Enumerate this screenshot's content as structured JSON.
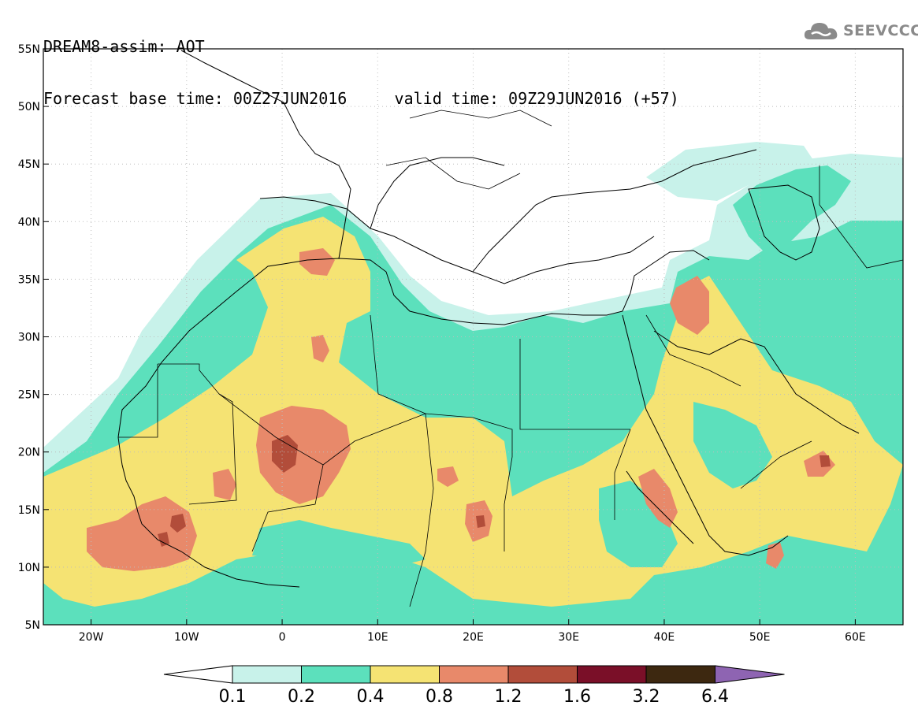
{
  "header": {
    "title": "DREAM8-assim: AOT",
    "base_time": "Forecast base time: 00Z27JUN2016",
    "valid_time": "valid time: 09Z29JUN2016 (+57)"
  },
  "logo": {
    "text": "SEEVCCC",
    "icon": "cloud-icon"
  },
  "map": {
    "lon_range": [
      -25,
      65
    ],
    "lat_range": [
      5,
      55
    ],
    "lat_labels": [
      "55N",
      "50N",
      "45N",
      "40N",
      "35N",
      "30N",
      "25N",
      "20N",
      "15N",
      "10N",
      "5N"
    ],
    "lon_labels": [
      "20W",
      "10W",
      "0",
      "10E",
      "20E",
      "30E",
      "40E",
      "50E",
      "60E"
    ],
    "grid": "dotted"
  },
  "colorbar": {
    "labels": [
      "0.1",
      "0.2",
      "0.4",
      "0.8",
      "1.2",
      "1.6",
      "3.2",
      "6.4"
    ],
    "colors": [
      "#c8f2ea",
      "#5ce0bc",
      "#f5e373",
      "#e8896a",
      "#b24d3a",
      "#7a0f28",
      "#3d2810"
    ],
    "under_color": "#ffffff",
    "over_color": "#8e64b2"
  }
}
